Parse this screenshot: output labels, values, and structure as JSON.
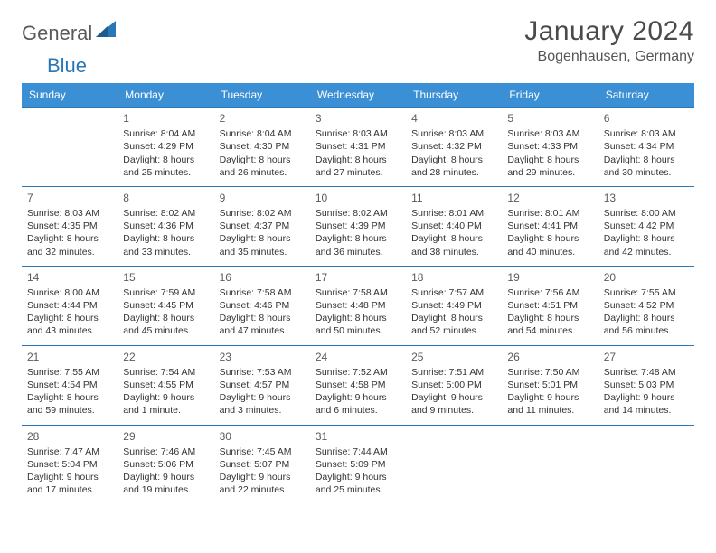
{
  "brand": {
    "part1": "General",
    "part2": "Blue"
  },
  "title": "January 2024",
  "location": "Bogenhausen, Germany",
  "colors": {
    "header_bg": "#3b8fd4",
    "header_text": "#ffffff",
    "row_border": "#2a77b8",
    "body_text": "#333333",
    "brand_gray": "#5a5a5a",
    "brand_blue": "#2a77b8",
    "background": "#ffffff"
  },
  "weekdays": [
    "Sunday",
    "Monday",
    "Tuesday",
    "Wednesday",
    "Thursday",
    "Friday",
    "Saturday"
  ],
  "weeks": [
    [
      null,
      {
        "n": "1",
        "sr": "Sunrise: 8:04 AM",
        "ss": "Sunset: 4:29 PM",
        "dl": "Daylight: 8 hours and 25 minutes."
      },
      {
        "n": "2",
        "sr": "Sunrise: 8:04 AM",
        "ss": "Sunset: 4:30 PM",
        "dl": "Daylight: 8 hours and 26 minutes."
      },
      {
        "n": "3",
        "sr": "Sunrise: 8:03 AM",
        "ss": "Sunset: 4:31 PM",
        "dl": "Daylight: 8 hours and 27 minutes."
      },
      {
        "n": "4",
        "sr": "Sunrise: 8:03 AM",
        "ss": "Sunset: 4:32 PM",
        "dl": "Daylight: 8 hours and 28 minutes."
      },
      {
        "n": "5",
        "sr": "Sunrise: 8:03 AM",
        "ss": "Sunset: 4:33 PM",
        "dl": "Daylight: 8 hours and 29 minutes."
      },
      {
        "n": "6",
        "sr": "Sunrise: 8:03 AM",
        "ss": "Sunset: 4:34 PM",
        "dl": "Daylight: 8 hours and 30 minutes."
      }
    ],
    [
      {
        "n": "7",
        "sr": "Sunrise: 8:03 AM",
        "ss": "Sunset: 4:35 PM",
        "dl": "Daylight: 8 hours and 32 minutes."
      },
      {
        "n": "8",
        "sr": "Sunrise: 8:02 AM",
        "ss": "Sunset: 4:36 PM",
        "dl": "Daylight: 8 hours and 33 minutes."
      },
      {
        "n": "9",
        "sr": "Sunrise: 8:02 AM",
        "ss": "Sunset: 4:37 PM",
        "dl": "Daylight: 8 hours and 35 minutes."
      },
      {
        "n": "10",
        "sr": "Sunrise: 8:02 AM",
        "ss": "Sunset: 4:39 PM",
        "dl": "Daylight: 8 hours and 36 minutes."
      },
      {
        "n": "11",
        "sr": "Sunrise: 8:01 AM",
        "ss": "Sunset: 4:40 PM",
        "dl": "Daylight: 8 hours and 38 minutes."
      },
      {
        "n": "12",
        "sr": "Sunrise: 8:01 AM",
        "ss": "Sunset: 4:41 PM",
        "dl": "Daylight: 8 hours and 40 minutes."
      },
      {
        "n": "13",
        "sr": "Sunrise: 8:00 AM",
        "ss": "Sunset: 4:42 PM",
        "dl": "Daylight: 8 hours and 42 minutes."
      }
    ],
    [
      {
        "n": "14",
        "sr": "Sunrise: 8:00 AM",
        "ss": "Sunset: 4:44 PM",
        "dl": "Daylight: 8 hours and 43 minutes."
      },
      {
        "n": "15",
        "sr": "Sunrise: 7:59 AM",
        "ss": "Sunset: 4:45 PM",
        "dl": "Daylight: 8 hours and 45 minutes."
      },
      {
        "n": "16",
        "sr": "Sunrise: 7:58 AM",
        "ss": "Sunset: 4:46 PM",
        "dl": "Daylight: 8 hours and 47 minutes."
      },
      {
        "n": "17",
        "sr": "Sunrise: 7:58 AM",
        "ss": "Sunset: 4:48 PM",
        "dl": "Daylight: 8 hours and 50 minutes."
      },
      {
        "n": "18",
        "sr": "Sunrise: 7:57 AM",
        "ss": "Sunset: 4:49 PM",
        "dl": "Daylight: 8 hours and 52 minutes."
      },
      {
        "n": "19",
        "sr": "Sunrise: 7:56 AM",
        "ss": "Sunset: 4:51 PM",
        "dl": "Daylight: 8 hours and 54 minutes."
      },
      {
        "n": "20",
        "sr": "Sunrise: 7:55 AM",
        "ss": "Sunset: 4:52 PM",
        "dl": "Daylight: 8 hours and 56 minutes."
      }
    ],
    [
      {
        "n": "21",
        "sr": "Sunrise: 7:55 AM",
        "ss": "Sunset: 4:54 PM",
        "dl": "Daylight: 8 hours and 59 minutes."
      },
      {
        "n": "22",
        "sr": "Sunrise: 7:54 AM",
        "ss": "Sunset: 4:55 PM",
        "dl": "Daylight: 9 hours and 1 minute."
      },
      {
        "n": "23",
        "sr": "Sunrise: 7:53 AM",
        "ss": "Sunset: 4:57 PM",
        "dl": "Daylight: 9 hours and 3 minutes."
      },
      {
        "n": "24",
        "sr": "Sunrise: 7:52 AM",
        "ss": "Sunset: 4:58 PM",
        "dl": "Daylight: 9 hours and 6 minutes."
      },
      {
        "n": "25",
        "sr": "Sunrise: 7:51 AM",
        "ss": "Sunset: 5:00 PM",
        "dl": "Daylight: 9 hours and 9 minutes."
      },
      {
        "n": "26",
        "sr": "Sunrise: 7:50 AM",
        "ss": "Sunset: 5:01 PM",
        "dl": "Daylight: 9 hours and 11 minutes."
      },
      {
        "n": "27",
        "sr": "Sunrise: 7:48 AM",
        "ss": "Sunset: 5:03 PM",
        "dl": "Daylight: 9 hours and 14 minutes."
      }
    ],
    [
      {
        "n": "28",
        "sr": "Sunrise: 7:47 AM",
        "ss": "Sunset: 5:04 PM",
        "dl": "Daylight: 9 hours and 17 minutes."
      },
      {
        "n": "29",
        "sr": "Sunrise: 7:46 AM",
        "ss": "Sunset: 5:06 PM",
        "dl": "Daylight: 9 hours and 19 minutes."
      },
      {
        "n": "30",
        "sr": "Sunrise: 7:45 AM",
        "ss": "Sunset: 5:07 PM",
        "dl": "Daylight: 9 hours and 22 minutes."
      },
      {
        "n": "31",
        "sr": "Sunrise: 7:44 AM",
        "ss": "Sunset: 5:09 PM",
        "dl": "Daylight: 9 hours and 25 minutes."
      },
      null,
      null,
      null
    ]
  ]
}
